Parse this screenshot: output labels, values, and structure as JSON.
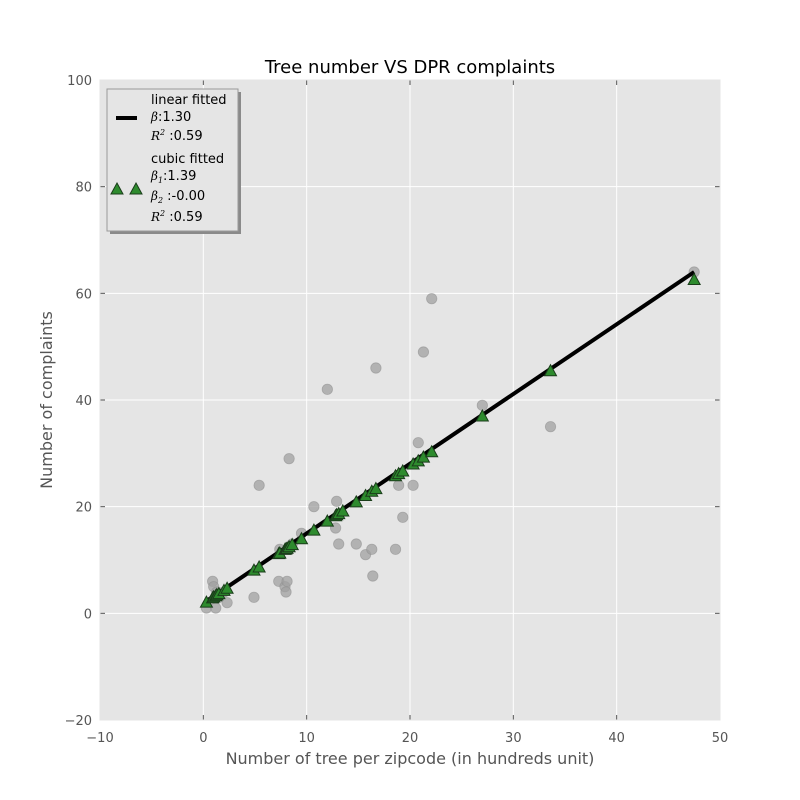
{
  "chart_data": {
    "type": "scatter",
    "title": "Tree number VS DPR complaints",
    "xlabel": "Number of tree per zipcode (in hundreds unit)",
    "ylabel": "Number of complaints",
    "xlim": [
      -10,
      50
    ],
    "ylim": [
      -20,
      100
    ],
    "xticks": [
      -10,
      0,
      10,
      20,
      30,
      40,
      50
    ],
    "yticks": [
      -20,
      0,
      20,
      40,
      60,
      80,
      100
    ],
    "xtick_labels": [
      "−10",
      "0",
      "10",
      "20",
      "30",
      "40",
      "50"
    ],
    "ytick_labels": [
      "−20",
      "0",
      "20",
      "40",
      "60",
      "80",
      "100"
    ],
    "grid": true,
    "background": "#e5e5e5",
    "legend_position": "upper-left",
    "series": [
      {
        "kind": "scatter",
        "color": "#a0a0a0",
        "x": [
          0.3,
          0.9,
          1.0,
          1.2,
          1.3,
          1.5,
          2.0,
          2.3,
          4.9,
          5.4,
          7.3,
          7.4,
          7.9,
          8.0,
          8.1,
          8.3,
          8.6,
          9.5,
          10.7,
          12.0,
          12.8,
          12.9,
          13.1,
          14.8,
          15.7,
          16.3,
          16.4,
          16.7,
          18.6,
          18.9,
          19.3,
          20.3,
          20.8,
          21.3,
          22.1,
          27.0,
          33.6,
          47.5
        ],
        "y": [
          1,
          6,
          5,
          1,
          4,
          3,
          4,
          2,
          3,
          24,
          6,
          12,
          5,
          4,
          6,
          29,
          13,
          15,
          20,
          42,
          16,
          21,
          13,
          13,
          11,
          12,
          7,
          46,
          12,
          24,
          18,
          24,
          32,
          49,
          59,
          39,
          35,
          64
        ]
      },
      {
        "kind": "line",
        "name": "linear fitted",
        "color": "#000000",
        "x": [
          0.3,
          47.5
        ],
        "y": [
          2.3,
          64.0
        ]
      },
      {
        "kind": "marker",
        "name": "cubic fitted",
        "color": "#2ca02c",
        "x": [
          0.3,
          0.9,
          1.0,
          1.2,
          1.3,
          1.5,
          2.0,
          2.3,
          4.9,
          5.4,
          7.3,
          7.4,
          7.9,
          8.0,
          8.1,
          8.3,
          8.6,
          9.5,
          10.7,
          12.0,
          12.8,
          12.9,
          13.1,
          13.5,
          14.8,
          15.7,
          16.3,
          16.7,
          18.6,
          18.9,
          19.3,
          20.3,
          20.8,
          21.3,
          22.1,
          27.0,
          33.6,
          47.5
        ],
        "y": [
          2.0,
          2.8,
          3.0,
          3.2,
          3.4,
          3.6,
          4.2,
          4.6,
          8.0,
          8.6,
          11.1,
          11.2,
          11.9,
          12.0,
          12.1,
          12.4,
          12.8,
          13.9,
          15.5,
          17.2,
          18.2,
          18.4,
          18.6,
          19.1,
          20.8,
          22.0,
          22.8,
          23.3,
          25.7,
          26.1,
          26.6,
          27.9,
          28.5,
          29.2,
          30.2,
          36.9,
          45.4,
          62.5
        ]
      }
    ],
    "legend": {
      "linear": {
        "label": "linear fitted",
        "beta_sym": "β",
        "beta_val": ":1.30",
        "r2_sym": "R",
        "r2_sup": "2",
        "r2_val": " :0.59"
      },
      "cubic": {
        "label": "cubic fitted",
        "beta1_sym": "β",
        "beta1_sub": "1",
        "beta1_val": ":1.39",
        "beta2_sym": "β",
        "beta2_sub": "2",
        "beta2_val": " :-0.00",
        "r2_sym": "R",
        "r2_sup": "2",
        "r2_val": " :0.59"
      }
    }
  }
}
